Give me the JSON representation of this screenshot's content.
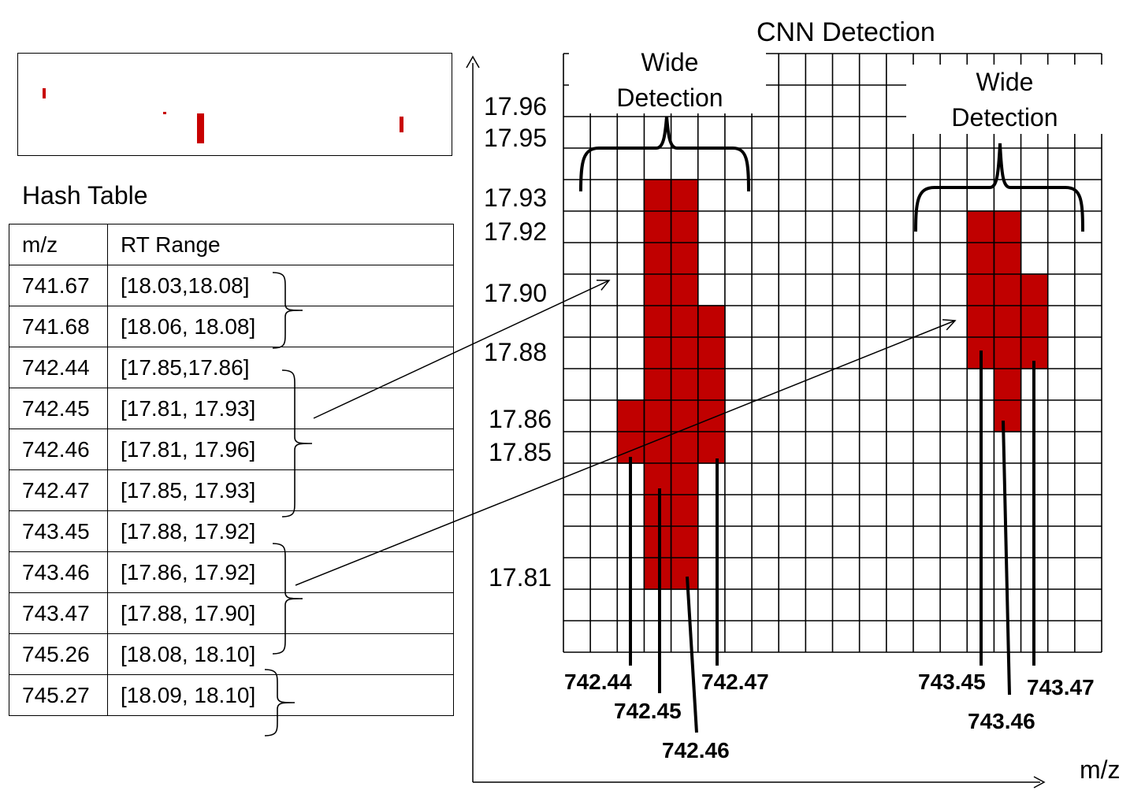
{
  "title": "CNN Detection",
  "axis_label_x": "m/z",
  "wide_detection_left": [
    "Wide",
    "Detection"
  ],
  "wide_detection_right": [
    "Wide",
    "Detection"
  ],
  "hash_table": {
    "title": "Hash Table",
    "headers": [
      "m/z",
      "RT Range"
    ],
    "rows": [
      {
        "mz": "741.67",
        "rt": "[18.03,18.08]"
      },
      {
        "mz": "741.68",
        "rt": "[18.06, 18.08]"
      },
      {
        "mz": "742.44",
        "rt": "[17.85,17.86]"
      },
      {
        "mz": "742.45",
        "rt": "[17.81, 17.93]"
      },
      {
        "mz": "742.46",
        "rt": "[17.81, 17.96]"
      },
      {
        "mz": "742.47",
        "rt": "[17.85, 17.93]"
      },
      {
        "mz": "743.45",
        "rt": "[17.88, 17.92]"
      },
      {
        "mz": "743.46",
        "rt": "[17.86, 17.92]"
      },
      {
        "mz": "743.47",
        "rt": "[17.88, 17.90]"
      },
      {
        "mz": "745.26",
        "rt": "[18.08, 18.10]"
      },
      {
        "mz": "745.27",
        "rt": "[18.09, 18.10]"
      }
    ]
  },
  "rt_axis_labels": [
    "17.96",
    "17.95",
    "17.93",
    "17.92",
    "17.90",
    "17.88",
    "17.86",
    "17.85",
    "17.81"
  ],
  "mz_labels_group1": [
    "742.44",
    "742.45",
    "742.46",
    "742.47"
  ],
  "mz_labels_group2": [
    "743.45",
    "743.46",
    "743.47"
  ],
  "colors": {
    "peak": "#c00000",
    "grid": "#000000"
  }
}
